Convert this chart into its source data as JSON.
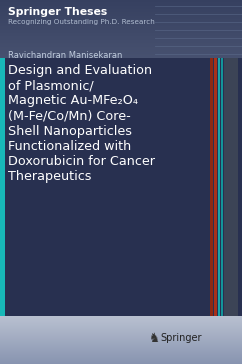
{
  "series_title": "Springer Theses",
  "series_subtitle": "Recognizing Outstanding Ph.D. Research",
  "author": "Ravichandran Manisekaran",
  "title_text": "Design and Evaluation\nof Plasmonic/\nMagnetic Au-MFe₂O₄\n(M-Fe/Co/Mn) Core-\nShell Nanoparticles\nFunctionalized with\nDoxorubicin for Cancer\nTherapeutics",
  "publisher": "Springer",
  "bg_top_color": "#364060",
  "bg_mid_color": "#4a5a7e",
  "bg_bottom_color": "#909ab8",
  "title_bg_color": "#283050",
  "text_color_white": "#ffffff",
  "text_color_light": "#b0bcd0",
  "text_color_author": "#c0ccdd",
  "left_bar_color": "#18b8b8",
  "stripe1_color": "#b83010",
  "stripe2_color": "#d04010",
  "stripe3_color": "#18b0b0",
  "stripe4_color": "#10a0a0",
  "springer_text_color": "#222222",
  "horizontal_line_color": "#607090"
}
